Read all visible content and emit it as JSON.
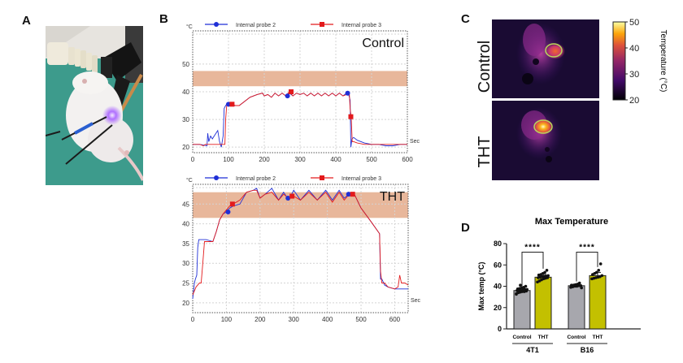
{
  "panels": {
    "a": {
      "letter": "A",
      "photo_alt": "mouse-under-plasma-device"
    },
    "b": {
      "letter": "B"
    },
    "c": {
      "letter": "C"
    },
    "d": {
      "letter": "D"
    }
  },
  "chart_data": [
    {
      "id": "control-trace",
      "type": "line",
      "label": "Control",
      "yunit": "°C",
      "xunit": "Sec",
      "xlim": [
        0,
        600
      ],
      "ylim": [
        18,
        62
      ],
      "xticks": [
        0,
        100,
        200,
        300,
        400,
        500,
        600
      ],
      "yticks": [
        20,
        30,
        40,
        50
      ],
      "grid": true,
      "band": [
        42,
        47.5
      ],
      "legend": [
        "Internal probe 2",
        "Internal probe 3"
      ],
      "legend_placement": "top",
      "series": [
        {
          "name": "Internal probe 2",
          "color": "#1f2fd6",
          "marker": "circle",
          "x": [
            0,
            20,
            40,
            42,
            45,
            50,
            55,
            60,
            65,
            70,
            75,
            80,
            85,
            88,
            92,
            95,
            100,
            110,
            120,
            130,
            140,
            160,
            180,
            195,
            200,
            210,
            220,
            230,
            240,
            250,
            260,
            270,
            280,
            290,
            300,
            310,
            320,
            330,
            340,
            350,
            360,
            370,
            380,
            390,
            400,
            410,
            420,
            430,
            436,
            440,
            442,
            445,
            450,
            460,
            480,
            500,
            520,
            540,
            560,
            580,
            600
          ],
          "y": [
            21,
            21,
            20.5,
            25,
            22,
            24,
            23,
            24,
            25,
            26,
            22,
            20,
            24,
            34,
            35,
            35.5,
            35.5,
            35,
            35,
            35,
            36,
            38,
            39,
            39.5,
            38.5,
            39,
            38,
            39.5,
            38.5,
            39.5,
            38.5,
            39.5,
            38.5,
            39.5,
            39,
            39.5,
            38.5,
            39.5,
            38.5,
            39.5,
            38.5,
            39.5,
            38.5,
            39.5,
            38.5,
            39.5,
            38.5,
            39.5,
            39,
            37,
            20,
            23,
            23.5,
            22.5,
            21.5,
            21,
            21,
            20.5,
            20.5,
            21,
            21
          ],
          "markers": [
            [
              100,
              35.5
            ],
            [
              265,
              38.5
            ],
            [
              433,
              39.5
            ]
          ]
        },
        {
          "name": "Internal probe 3",
          "color": "#e31a1c",
          "marker": "square",
          "x": [
            0,
            20,
            30,
            35,
            60,
            80,
            90,
            92,
            95,
            100,
            110,
            120,
            130,
            140,
            160,
            180,
            195,
            200,
            210,
            220,
            230,
            240,
            250,
            260,
            270,
            280,
            290,
            300,
            310,
            320,
            330,
            340,
            350,
            360,
            370,
            380,
            390,
            400,
            410,
            420,
            430,
            438,
            440,
            443,
            446,
            450,
            460,
            480,
            500,
            520,
            540,
            560,
            580,
            600
          ],
          "y": [
            21,
            21,
            20.5,
            21,
            21,
            21,
            21,
            30,
            35,
            35.5,
            35.5,
            35,
            35,
            36,
            38,
            39,
            39.5,
            38.5,
            39,
            38,
            39.5,
            38.5,
            39.5,
            38.5,
            40,
            38.5,
            39.5,
            39,
            39.5,
            38.5,
            39.5,
            38.5,
            39.5,
            38.5,
            39.5,
            38.5,
            39.5,
            38.5,
            39.5,
            38.5,
            39,
            39,
            34,
            31,
            22,
            22,
            21.5,
            21,
            21,
            21,
            21,
            21,
            21,
            21
          ],
          "markers": [
            [
              110,
              35.5
            ],
            [
              275,
              40
            ],
            [
              442,
              31
            ]
          ]
        }
      ]
    },
    {
      "id": "tht-trace",
      "type": "line",
      "label": "THT",
      "yunit": "°C",
      "xunit": "Sec",
      "xlim": [
        0,
        640
      ],
      "ylim": [
        17.5,
        50
      ],
      "xticks": [
        0,
        100,
        200,
        300,
        400,
        500,
        600
      ],
      "yticks": [
        20,
        25,
        30,
        35,
        40,
        45
      ],
      "grid": true,
      "band": [
        41.5,
        48
      ],
      "legend": [
        "Internal probe 2",
        "Internal probe 3"
      ],
      "legend_placement": "top",
      "series": [
        {
          "name": "Internal probe 2",
          "color": "#1f2fd6",
          "marker": "circle",
          "x": [
            0,
            5,
            8,
            12,
            15,
            18,
            20,
            25,
            40,
            60,
            70,
            80,
            90,
            100,
            110,
            120,
            140,
            160,
            180,
            190,
            200,
            215,
            235,
            255,
            270,
            285,
            300,
            320,
            345,
            370,
            395,
            415,
            435,
            450,
            465,
            480,
            500,
            530,
            555,
            558,
            562,
            570,
            580,
            600,
            620,
            640
          ],
          "y": [
            21,
            25,
            26,
            27,
            34,
            36,
            36,
            36,
            36,
            35.5,
            38,
            41,
            42.5,
            43,
            44,
            44.5,
            45,
            48,
            48.5,
            49,
            46.5,
            47.5,
            49,
            46,
            48,
            46,
            48.5,
            46,
            48.5,
            46,
            48.5,
            46,
            48.5,
            46.5,
            47.5,
            47.5,
            44,
            40.5,
            37.5,
            26,
            26,
            24.5,
            24,
            23.5,
            23.5,
            23.5
          ],
          "markers": [
            [
              105,
              43
            ],
            [
              283,
              46.5
            ],
            [
              463,
              47.5
            ]
          ]
        },
        {
          "name": "Internal probe 3",
          "color": "#e31a1c",
          "marker": "square",
          "x": [
            0,
            5,
            10,
            20,
            25,
            30,
            35,
            60,
            70,
            80,
            90,
            100,
            110,
            120,
            140,
            160,
            180,
            190,
            200,
            215,
            235,
            255,
            270,
            285,
            300,
            320,
            345,
            370,
            395,
            415,
            435,
            450,
            465,
            480,
            500,
            530,
            555,
            558,
            562,
            570,
            580,
            600,
            610,
            615,
            620,
            630,
            640
          ],
          "y": [
            22,
            23,
            24,
            25,
            25,
            30,
            35.5,
            35.5,
            38,
            41,
            42.5,
            43.5,
            44.5,
            45,
            46,
            48,
            48.5,
            48.5,
            46.5,
            47.5,
            48,
            46,
            47.5,
            46.5,
            47,
            46,
            48,
            46,
            48,
            45.5,
            48,
            46,
            47.5,
            47.5,
            44,
            40.5,
            37.5,
            28,
            25,
            25,
            24,
            23.5,
            24,
            27,
            25,
            25,
            24.5
          ],
          "markers": [
            [
              118,
              45
            ],
            [
              295,
              47
            ],
            [
              475,
              47.5
            ]
          ]
        }
      ]
    },
    {
      "id": "max-temperature",
      "type": "bar",
      "title": "Max Temperature",
      "ylabel": "Max temp (°C)",
      "ylim": [
        0,
        80
      ],
      "yticks": [
        0,
        20,
        40,
        60,
        80
      ],
      "groups": [
        "4T1",
        "B16"
      ],
      "categories": [
        "Control",
        "THT"
      ],
      "colors": {
        "Control": "#a7a7ad",
        "THT": "#c3c000"
      },
      "series": [
        {
          "group": "4T1",
          "category": "Control",
          "mean": 36,
          "sd": 2.5,
          "points": [
            33,
            34,
            34.5,
            35,
            35,
            35.5,
            36,
            36,
            36,
            36.5,
            37,
            37,
            37.5,
            38,
            38.5,
            39,
            40,
            32.5,
            34,
            41
          ]
        },
        {
          "group": "4T1",
          "category": "THT",
          "mean": 48.5,
          "sd": 2.5,
          "points": [
            44,
            45,
            46,
            47,
            47.5,
            48,
            48,
            48.5,
            49,
            49,
            49.5,
            50,
            50.5,
            51,
            52,
            53,
            55
          ]
        },
        {
          "group": "B16",
          "category": "Control",
          "mean": 40.5,
          "sd": 1.5,
          "points": [
            39,
            39.5,
            40,
            40,
            40.5,
            40.5,
            41,
            41,
            41.5,
            42,
            43,
            38.5
          ]
        },
        {
          "group": "B16",
          "category": "THT",
          "mean": 50,
          "sd": 3,
          "points": [
            47,
            47.5,
            48,
            48.5,
            49,
            50,
            51,
            52,
            53,
            55,
            61
          ]
        }
      ],
      "significance": [
        {
          "group": "4T1",
          "label": "****"
        },
        {
          "group": "B16",
          "label": "****"
        }
      ]
    }
  ],
  "thermal": {
    "rows": [
      "Control",
      "THT"
    ],
    "colorbar": {
      "label": "Temperature (°C)",
      "ticks": [
        20,
        30,
        40,
        50
      ],
      "min": 20,
      "max": 50
    }
  }
}
